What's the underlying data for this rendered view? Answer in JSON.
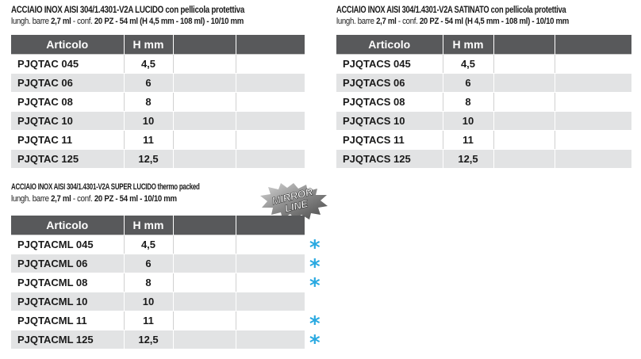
{
  "table1": {
    "title": "ACCIAIO INOX AISI 304/1.4301-V2A LUCIDO con pellicola protettiva",
    "sub_prefix": "lungh. barre ",
    "sub_len": "2,7 ml",
    "sub_mid": " - conf. ",
    "sub_conf": "20 PZ - 54 ml (H 4,5 mm - 108 ml) - 10/10 mm",
    "col_articolo": "Articolo",
    "col_h": "H mm",
    "rows": [
      {
        "code": "PJQTAC 045",
        "h": "4,5"
      },
      {
        "code": "PJQTAC 06",
        "h": "6"
      },
      {
        "code": "PJQTAC 08",
        "h": "8"
      },
      {
        "code": "PJQTAC 10",
        "h": "10"
      },
      {
        "code": "PJQTAC 11",
        "h": "11"
      },
      {
        "code": "PJQTAC 125",
        "h": "12,5"
      }
    ]
  },
  "table2": {
    "title": "ACCIAIO INOX AISI 304/1.4301-V2A SATINATO con pellicola protettiva",
    "sub_prefix": "lungh. barre ",
    "sub_len": "2,7 ml",
    "sub_mid": " - conf. ",
    "sub_conf": "20 PZ - 54 ml (H 4,5 mm - 108 ml) - 10/10 mm",
    "col_articolo": "Articolo",
    "col_h": "H mm",
    "rows": [
      {
        "code": "PJQTACS 045",
        "h": "4,5"
      },
      {
        "code": "PJQTACS 06",
        "h": "6"
      },
      {
        "code": "PJQTACS 08",
        "h": "8"
      },
      {
        "code": "PJQTACS 10",
        "h": "10"
      },
      {
        "code": "PJQTACS 11",
        "h": "11"
      },
      {
        "code": "PJQTACS 125",
        "h": "12,5"
      }
    ]
  },
  "table3": {
    "title": "ACCIAIO INOX AISI 304/1.4301-V2A SUPER LUCIDO thermo packed",
    "sub_prefix": "lungh. barre ",
    "sub_len": "2,7 ml",
    "sub_mid": " - conf. ",
    "sub_conf": "20 PZ - 54 ml - 10/10 mm",
    "col_articolo": "Articolo",
    "col_h": "H mm",
    "badge_line1": "MIRROR",
    "badge_line2": "LINE",
    "star_glyph": "*",
    "star_color": "#29a9e1",
    "rows": [
      {
        "code": "PJQTACML 045",
        "h": "4,5",
        "star": true
      },
      {
        "code": "PJQTACML 06",
        "h": "6",
        "star": true
      },
      {
        "code": "PJQTACML 08",
        "h": "8",
        "star": true
      },
      {
        "code": "PJQTACML 10",
        "h": "10",
        "star": false
      },
      {
        "code": "PJQTACML 11",
        "h": "11",
        "star": true
      },
      {
        "code": "PJQTACML 125",
        "h": "12,5",
        "star": true
      }
    ]
  },
  "colors": {
    "header_bg": "#58595b",
    "row_alt_bg": "#e2e3e4",
    "accent": "#29a9e1"
  }
}
